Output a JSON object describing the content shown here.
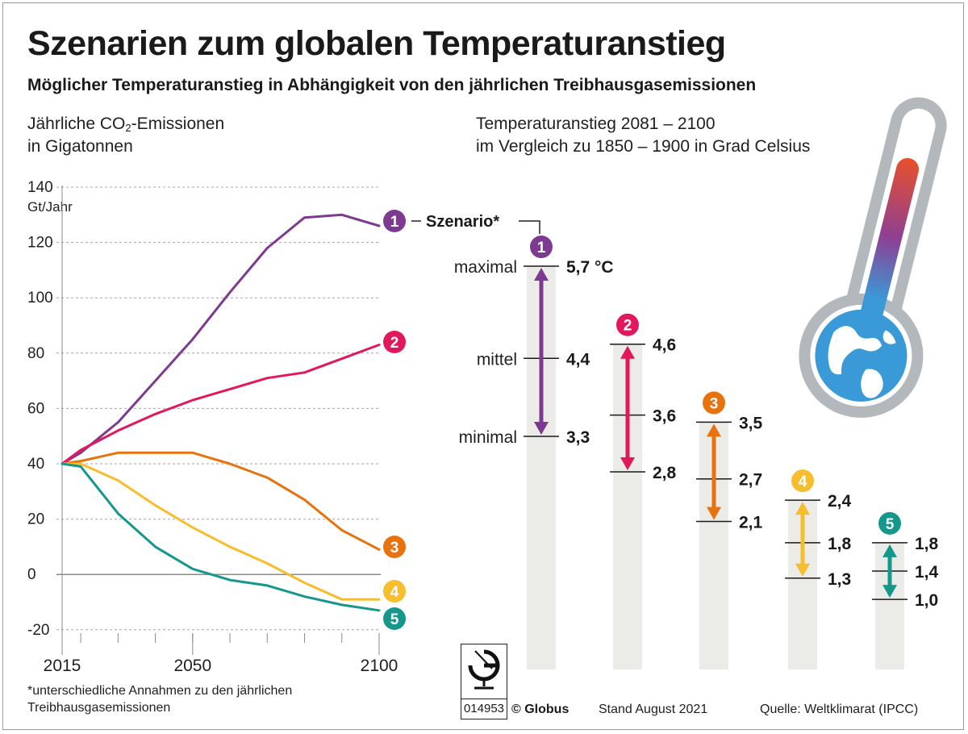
{
  "title": "Szenarien zum globalen Temperaturanstieg",
  "subtitle": "Möglicher Temperaturanstieg in Abhängigkeit von den jährlichen Treibhausgasemissionen",
  "left_header": {
    "line1_pre": "Jährliche CO",
    "line1_sub": "2",
    "line1_post": "-Emissionen",
    "line2": "in Gigatonnen"
  },
  "right_header": {
    "line1": "Temperaturanstieg 2081 – 2100",
    "line2": "im Vergleich zu 1850 – 1900 in Grad Celsius"
  },
  "colors": {
    "s1": "#7d3a91",
    "s2": "#e2185c",
    "s3": "#e8720e",
    "s4": "#f6bd2d",
    "s5": "#16978c",
    "bar": "#ebebe8",
    "grid": "#a6a6a6"
  },
  "chart_data": [
    {
      "type": "line",
      "title": "Jährliche CO2-Emissionen in Gigatonnen",
      "ylabel": "Gt/Jahr",
      "ylim": [
        -20,
        140
      ],
      "yticks": [
        "140",
        "120",
        "100",
        "80",
        "60",
        "40",
        "20",
        "0",
        "-20"
      ],
      "ytick_values": [
        140,
        120,
        100,
        80,
        60,
        40,
        20,
        0,
        -20
      ],
      "x": [
        2015,
        2020,
        2030,
        2040,
        2050,
        2060,
        2070,
        2080,
        2090,
        2100
      ],
      "xticks": [
        "2015",
        "2050",
        "2100"
      ],
      "xtick_values": [
        2015,
        2050,
        2100
      ],
      "series": [
        {
          "name": "1",
          "color_key": "s1",
          "values": [
            40,
            44,
            55,
            70,
            85,
            102,
            118,
            129,
            130,
            126
          ]
        },
        {
          "name": "2",
          "color_key": "s2",
          "values": [
            40,
            45,
            52,
            58,
            63,
            67,
            71,
            73,
            78,
            83
          ]
        },
        {
          "name": "3",
          "color_key": "s3",
          "values": [
            40,
            41,
            44,
            44,
            44,
            40,
            35,
            27,
            16,
            9
          ]
        },
        {
          "name": "4",
          "color_key": "s4",
          "values": [
            40,
            40,
            34,
            25,
            17,
            10,
            4,
            -3,
            -9,
            -9
          ]
        },
        {
          "name": "5",
          "color_key": "s5",
          "values": [
            40,
            39,
            22,
            10,
            2,
            -2,
            -4,
            -8,
            -11,
            -13
          ]
        }
      ],
      "legend_label": "Szenario*"
    },
    {
      "type": "range",
      "title": "Temperaturanstieg 2081 – 2100 im Vergleich zu 1850 – 1900 in Grad Celsius",
      "level_labels": {
        "max": "maximal",
        "mid": "mittel",
        "min": "minimal"
      },
      "scenarios": [
        {
          "name": "1",
          "color_key": "s1",
          "min": 3.3,
          "mid": 4.4,
          "max": 5.7,
          "min_label": "3,3",
          "mid_label": "4,4",
          "max_label": "5,7 °C"
        },
        {
          "name": "2",
          "color_key": "s2",
          "min": 2.8,
          "mid": 3.6,
          "max": 4.6,
          "min_label": "2,8",
          "mid_label": "3,6",
          "max_label": "4,6"
        },
        {
          "name": "3",
          "color_key": "s3",
          "min": 2.1,
          "mid": 2.7,
          "max": 3.5,
          "min_label": "2,1",
          "mid_label": "2,7",
          "max_label": "3,5"
        },
        {
          "name": "4",
          "color_key": "s4",
          "min": 1.3,
          "mid": 1.8,
          "max": 2.4,
          "min_label": "1,3",
          "mid_label": "1,8",
          "max_label": "2,4"
        },
        {
          "name": "5",
          "color_key": "s5",
          "min": 1.0,
          "mid": 1.4,
          "max": 1.8,
          "min_label": "1,0",
          "mid_label": "1,4",
          "max_label": "1,8"
        }
      ]
    }
  ],
  "footnote": "*unterschiedliche Annahmen zu den jährlichen Treibhausgasemissionen",
  "logo_code": "014953",
  "brand": "© Globus",
  "stand": "Stand August 2021",
  "source": "Quelle: Weltklimarat (IPCC)"
}
